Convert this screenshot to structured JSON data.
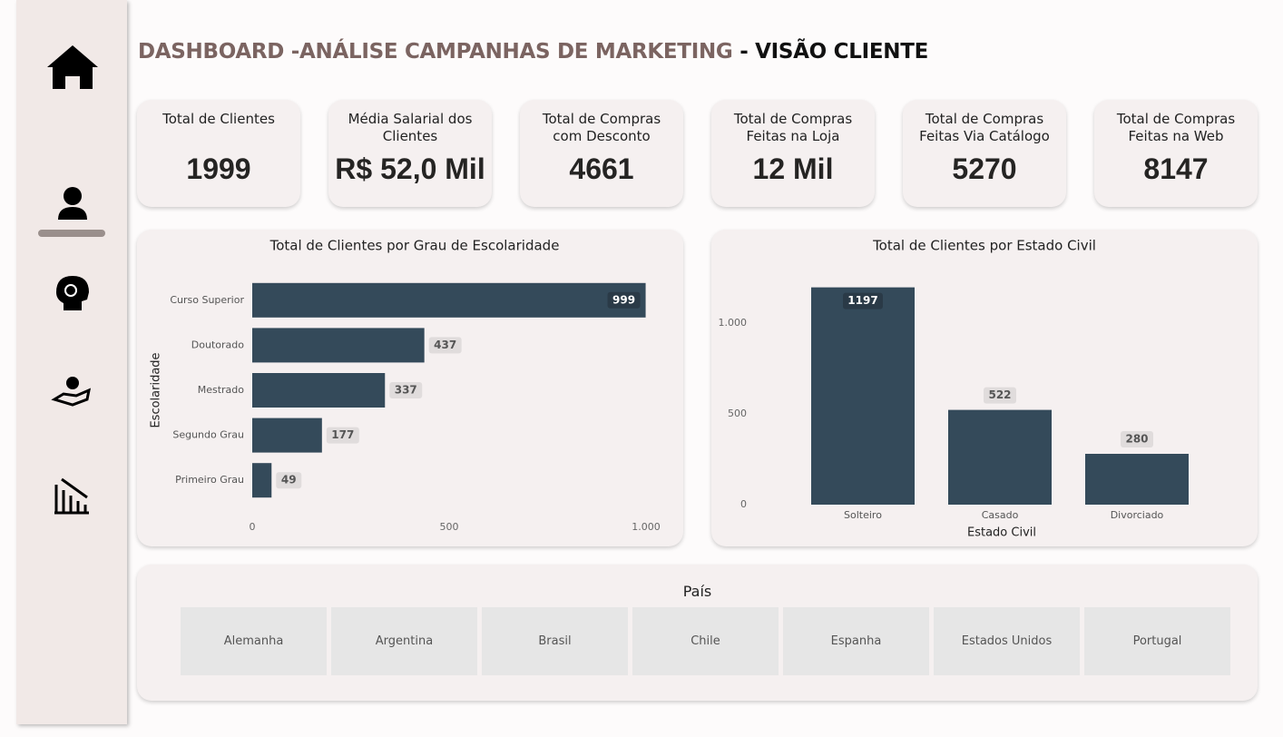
{
  "header": {
    "title": "DASHBOARD -ANÁLISE CAMPANHAS DE MARKETING",
    "subtitle": "- VISÃO CLIENTE"
  },
  "kpis": [
    {
      "label": "Total de Clientes",
      "value": 1999
    },
    {
      "label": "Média Salarial dos Clientes",
      "value": "R$ 52,0 Mil"
    },
    {
      "label": "Total de Compras com Desconto",
      "value": 4661
    },
    {
      "label": "Total de Compras Feitas na Loja",
      "value": "12 Mil"
    },
    {
      "label": "Total de Compras Feitas Via Catálogo",
      "value": 5270
    },
    {
      "label": "Total de Compras Feitas na Web",
      "value": 8147
    }
  ],
  "chart_data": [
    {
      "type": "hbar",
      "title": "Total de Clientes por Grau de Escolaridade",
      "y_label": "Escolaridade",
      "categories": [
        "Curso Superior",
        "Doutorado",
        "Mestrado",
        "Segundo Grau",
        "Primeiro Grau"
      ],
      "values": [
        999,
        437,
        337,
        177,
        49
      ],
      "color": "#344a5a",
      "xlim": [
        0,
        1000
      ],
      "xticks": [
        0,
        500,
        {
          "value": 1000,
          "label": "1.000"
        }
      ]
    },
    {
      "type": "bar",
      "title": "Total de Clientes por Estado Civil",
      "x_label": "Estado Civil",
      "categories": [
        "Solteiro",
        "Casado",
        "Divorciado"
      ],
      "values": [
        1197,
        522,
        280
      ],
      "color": "#344a5a",
      "ylim": [
        0,
        1200
      ],
      "yticks": [
        0,
        500,
        {
          "value": 1000,
          "label": "1.000"
        }
      ]
    }
  ],
  "slicer": {
    "title": "País",
    "items": [
      "Alemanha",
      "Argentina",
      "Brasil",
      "Chile",
      "Espanha",
      "Estados Unidos",
      "Portugal"
    ]
  }
}
